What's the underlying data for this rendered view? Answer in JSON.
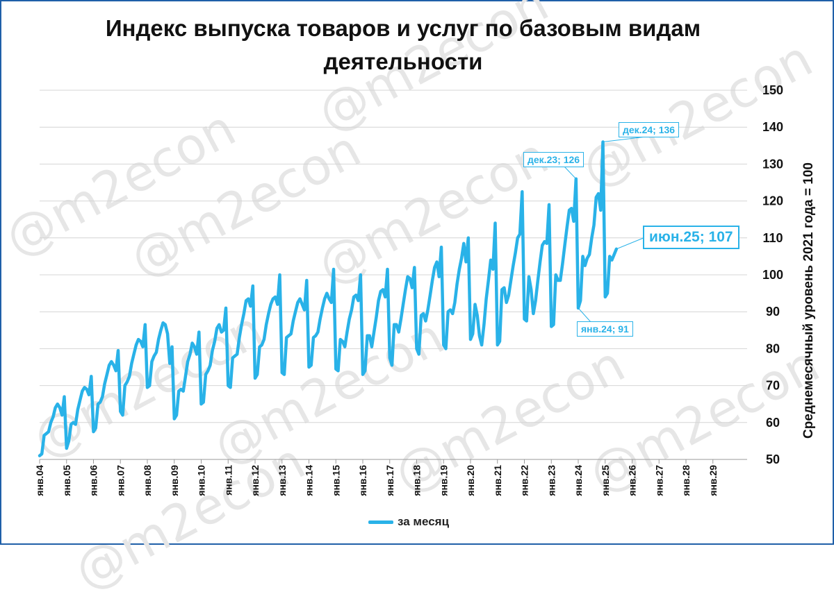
{
  "title_line1": "Индекс выпуска товаров и услуг по базовым видам",
  "title_line2": "деятельности",
  "watermark": "@m2econ",
  "chart_data": {
    "type": "line",
    "title": "Индекс выпуска товаров и услуг по базовым видам деятельности",
    "ylabel": "Среднемесячный уровень 2021 года  =  100",
    "ylim": [
      50,
      150
    ],
    "yticks": [
      50,
      60,
      70,
      80,
      90,
      100,
      110,
      120,
      130,
      140,
      150
    ],
    "year_ticks": [
      "янв.04",
      "янв.05",
      "янв.06",
      "янв.07",
      "янв.08",
      "янв.09",
      "янв.10",
      "янв.11",
      "янв.12",
      "янв.13",
      "янв.14",
      "янв.15",
      "янв.16",
      "янв.17",
      "янв.18",
      "янв.19",
      "янв.20",
      "янв.21",
      "янв.22",
      "янв.23",
      "янв.24",
      "янв.25",
      "янв.26",
      "янв.27",
      "янв.28",
      "янв.29"
    ],
    "grid": true,
    "legend_position": "bottom",
    "series": [
      {
        "name": "за месяц",
        "color": "#29b2e8",
        "start": "янв.04",
        "frequency": "monthly",
        "values": [
          51,
          51.5,
          56.5,
          57,
          57.5,
          60,
          61.5,
          64,
          65,
          64,
          62,
          67,
          53,
          55,
          59.5,
          60,
          59.5,
          63.5,
          66,
          68.5,
          69.5,
          69,
          67.5,
          72.5,
          57.5,
          58.5,
          65,
          65.5,
          67,
          70.5,
          73,
          75.5,
          76.5,
          75.5,
          74,
          79.5,
          63,
          62,
          70,
          71,
          72.5,
          76,
          78.5,
          81,
          82.5,
          82,
          80.5,
          86.5,
          69.5,
          70,
          76.5,
          78,
          79,
          82.5,
          85,
          87,
          86.5,
          84,
          76,
          80.5,
          61,
          62,
          68.5,
          69,
          68.5,
          72.5,
          76.5,
          78.5,
          81.5,
          80.5,
          78.5,
          84.5,
          65,
          65.5,
          73,
          74,
          75.5,
          79.5,
          82,
          85.5,
          86.5,
          84.5,
          85,
          91,
          70,
          69.5,
          77.5,
          78,
          78.5,
          83,
          86.5,
          89.5,
          93,
          93.5,
          91.5,
          97,
          72,
          73,
          80.5,
          81,
          82.5,
          86.5,
          89.5,
          92,
          93.5,
          94,
          92,
          100,
          73.5,
          73,
          83,
          83.5,
          84,
          87.5,
          90,
          92.5,
          93.5,
          92,
          90.5,
          98.5,
          75,
          75.5,
          83,
          83.5,
          84.5,
          88,
          91,
          93.5,
          95,
          93.5,
          92.5,
          101.5,
          74.5,
          74,
          82.5,
          82,
          80.5,
          84.5,
          88,
          90.5,
          94,
          94.5,
          93,
          100,
          73,
          74,
          83.5,
          83.5,
          80.5,
          84.5,
          88.5,
          93,
          95.5,
          96,
          94,
          101.5,
          77.5,
          75.5,
          86.5,
          86.5,
          84.5,
          88,
          92,
          96,
          99.5,
          99,
          96.5,
          102,
          80,
          78.5,
          89,
          89.5,
          87.5,
          90.5,
          94.5,
          98.5,
          102,
          103.5,
          99.5,
          107.5,
          81,
          80,
          90,
          90.5,
          89.5,
          92.5,
          97.5,
          101.5,
          104.5,
          108.5,
          103.5,
          110,
          82.5,
          84,
          92,
          89,
          83.5,
          81,
          86.5,
          93.5,
          98.5,
          104,
          101.5,
          114,
          81,
          82,
          96,
          96.5,
          92.5,
          94.5,
          98.5,
          102.5,
          106,
          110,
          111,
          122.5,
          88,
          87.5,
          99.5,
          96,
          89.5,
          93,
          98.5,
          103.5,
          108,
          109,
          108.5,
          119,
          86,
          86.5,
          100,
          98.5,
          98.5,
          103,
          108,
          113,
          117.5,
          118,
          114.5,
          126,
          91,
          93,
          105,
          102.5,
          104.5,
          105.5,
          110,
          113.5,
          121,
          122,
          117.5,
          136,
          94,
          95,
          105,
          104,
          105.5,
          107
        ]
      }
    ],
    "annotations": [
      {
        "label": "дек.23; 126",
        "x": "дек.23",
        "y": 126
      },
      {
        "label": "дек.24; 136",
        "x": "дек.24",
        "y": 136
      },
      {
        "label": "янв.24; 91",
        "x": "янв.24",
        "y": 91
      },
      {
        "label": "июн.25; 107",
        "x": "июн.25",
        "y": 107
      }
    ]
  }
}
